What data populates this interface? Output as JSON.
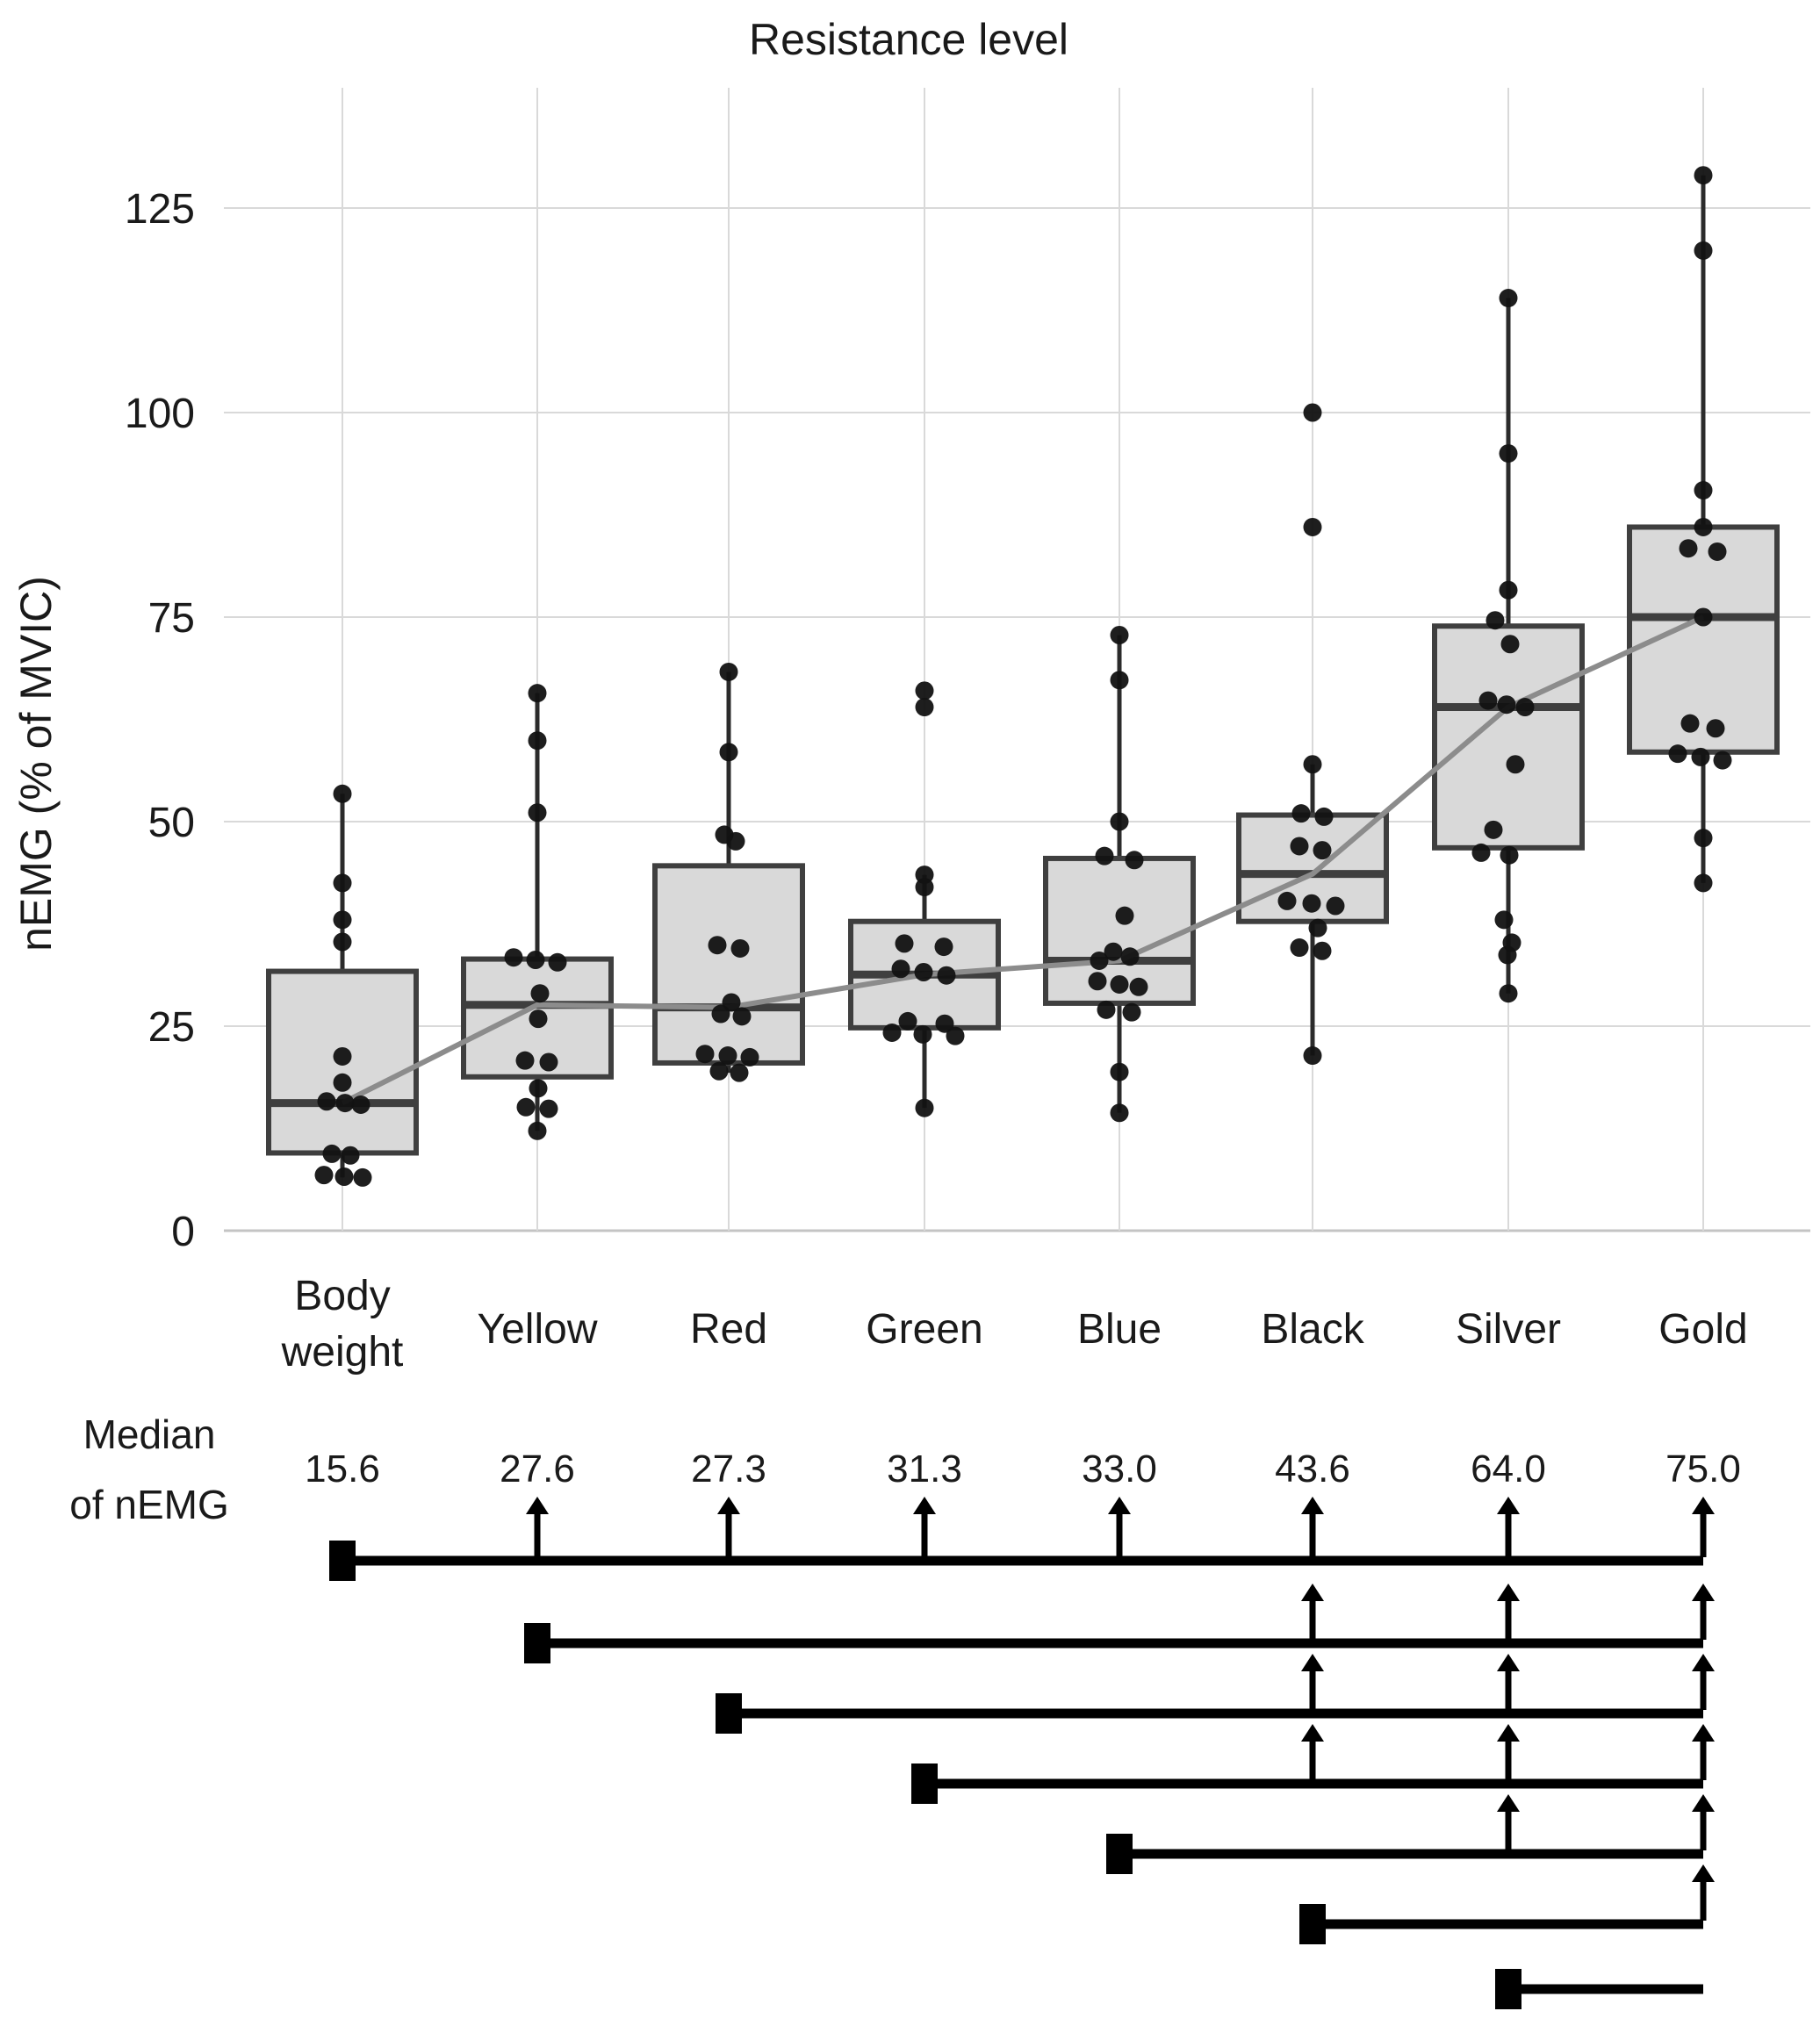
{
  "chart_data": {
    "type": "boxplot",
    "title": "Resistance level",
    "ylabel": "nEMG (% of MVIC)",
    "yticks": [
      0,
      25,
      50,
      75,
      100,
      125
    ],
    "ylim": [
      0,
      137
    ],
    "grid": "on",
    "legend": "none",
    "categories": [
      "Body weight",
      "Yellow",
      "Red",
      "Green",
      "Blue",
      "Black",
      "Silver",
      "Gold"
    ],
    "category_label_lines": [
      [
        "Body",
        "weight"
      ],
      [
        "Yellow"
      ],
      [
        "Red"
      ],
      [
        "Green"
      ],
      [
        "Blue"
      ],
      [
        "Black"
      ],
      [
        "Silver"
      ],
      [
        "Gold"
      ]
    ],
    "medians": [
      15.6,
      27.6,
      27.3,
      31.3,
      33.0,
      43.6,
      64.0,
      75.0
    ],
    "boxes": [
      {
        "category": "Body weight",
        "q1": 9.5,
        "median": 15.6,
        "q3": 31.7,
        "whisker_low": 6.5,
        "whisker_high": 53.4
      },
      {
        "category": "Yellow",
        "q1": 18.8,
        "median": 27.6,
        "q3": 33.2,
        "whisker_low": 12.2,
        "whisker_high": 65.7
      },
      {
        "category": "Red",
        "q1": 20.5,
        "median": 27.3,
        "q3": 44.6,
        "whisker_low": 19.3,
        "whisker_high": 68.3
      },
      {
        "category": "Green",
        "q1": 24.8,
        "median": 31.3,
        "q3": 37.8,
        "whisker_low": 15.0,
        "whisker_high": 43.5
      },
      {
        "category": "Blue",
        "q1": 27.8,
        "median": 33.0,
        "q3": 45.5,
        "whisker_low": 14.4,
        "whisker_high": 72.8
      },
      {
        "category": "Black",
        "q1": 37.8,
        "median": 43.6,
        "q3": 50.8,
        "whisker_low": 21.4,
        "whisker_high": 57.0
      },
      {
        "category": "Silver",
        "q1": 46.8,
        "median": 64.0,
        "q3": 73.9,
        "whisker_low": 29.0,
        "whisker_high": 114.0
      },
      {
        "category": "Gold",
        "q1": 58.5,
        "median": 75.0,
        "q3": 86.0,
        "whisker_low": 42.5,
        "whisker_high": 129.0
      }
    ],
    "points_value_dx": [
      [
        [
          53.4,
          0
        ],
        [
          42.5,
          0
        ],
        [
          38.0,
          0
        ],
        [
          35.3,
          0
        ],
        [
          21.3,
          0
        ],
        [
          18.1,
          0
        ],
        [
          15.8,
          -18
        ],
        [
          15.6,
          3
        ],
        [
          15.4,
          21
        ],
        [
          9.4,
          -12
        ],
        [
          9.2,
          9
        ],
        [
          6.8,
          -21
        ],
        [
          6.6,
          2
        ],
        [
          6.5,
          23
        ]
      ],
      [
        [
          65.7,
          0
        ],
        [
          59.9,
          0
        ],
        [
          51.1,
          0
        ],
        [
          33.4,
          -27
        ],
        [
          33.1,
          -2
        ],
        [
          32.8,
          23
        ],
        [
          29.0,
          3
        ],
        [
          25.9,
          1
        ],
        [
          20.8,
          -14
        ],
        [
          20.6,
          13
        ],
        [
          17.4,
          1
        ],
        [
          15.1,
          -13
        ],
        [
          14.9,
          13
        ],
        [
          12.2,
          0
        ]
      ],
      [
        [
          68.3,
          0
        ],
        [
          58.5,
          0
        ],
        [
          48.4,
          -5
        ],
        [
          47.6,
          8
        ],
        [
          34.9,
          -13
        ],
        [
          34.5,
          13
        ],
        [
          27.9,
          3
        ],
        [
          26.5,
          -9
        ],
        [
          26.2,
          15
        ],
        [
          21.6,
          -27
        ],
        [
          21.4,
          -1
        ],
        [
          21.2,
          24
        ],
        [
          19.5,
          -11
        ],
        [
          19.3,
          12
        ]
      ],
      [
        [
          66.0,
          0
        ],
        [
          64.0,
          0
        ],
        [
          43.5,
          0
        ],
        [
          42.0,
          0
        ],
        [
          35.1,
          -23
        ],
        [
          34.7,
          22
        ],
        [
          32.0,
          -27
        ],
        [
          31.6,
          -1
        ],
        [
          31.2,
          25
        ],
        [
          25.6,
          -19
        ],
        [
          25.3,
          23
        ],
        [
          24.2,
          -37
        ],
        [
          24.0,
          -2
        ],
        [
          23.8,
          35
        ],
        [
          15.0,
          0
        ]
      ],
      [
        [
          72.8,
          0
        ],
        [
          67.3,
          0
        ],
        [
          50.0,
          0
        ],
        [
          45.8,
          -17
        ],
        [
          45.3,
          17
        ],
        [
          38.5,
          6
        ],
        [
          34.1,
          -7
        ],
        [
          33.5,
          12
        ],
        [
          33.0,
          -23
        ],
        [
          30.5,
          -25
        ],
        [
          30.1,
          0
        ],
        [
          29.8,
          22
        ],
        [
          27.0,
          -15
        ],
        [
          26.7,
          14
        ],
        [
          19.4,
          0
        ],
        [
          14.4,
          0
        ]
      ],
      [
        [
          100.0,
          0
        ],
        [
          86.0,
          0
        ],
        [
          57.0,
          0
        ],
        [
          51.0,
          -13
        ],
        [
          50.6,
          13
        ],
        [
          47.0,
          -15
        ],
        [
          46.5,
          11
        ],
        [
          40.3,
          -29
        ],
        [
          40.0,
          -1
        ],
        [
          39.7,
          26
        ],
        [
          37.0,
          6
        ],
        [
          34.6,
          -15
        ],
        [
          34.2,
          11
        ],
        [
          21.4,
          0
        ]
      ],
      [
        [
          114.0,
          0
        ],
        [
          95.0,
          0
        ],
        [
          78.3,
          0
        ],
        [
          74.6,
          -15
        ],
        [
          71.7,
          2
        ],
        [
          64.8,
          -23
        ],
        [
          64.3,
          -2
        ],
        [
          64.0,
          19
        ],
        [
          57.0,
          8
        ],
        [
          49.0,
          -17
        ],
        [
          46.2,
          -31
        ],
        [
          45.9,
          1
        ],
        [
          38.0,
          -5
        ],
        [
          35.2,
          4
        ],
        [
          33.7,
          -1
        ],
        [
          29.0,
          0
        ]
      ],
      [
        [
          129.0,
          0
        ],
        [
          119.8,
          0
        ],
        [
          90.5,
          0
        ],
        [
          86.0,
          0
        ],
        [
          83.4,
          -17
        ],
        [
          83.0,
          16
        ],
        [
          75.0,
          0
        ],
        [
          62.0,
          -15
        ],
        [
          61.4,
          14
        ],
        [
          58.3,
          -29
        ],
        [
          57.9,
          -3
        ],
        [
          57.5,
          22
        ],
        [
          48.0,
          0
        ],
        [
          42.5,
          0
        ]
      ]
    ],
    "median_row": {
      "label_lines": [
        "Median",
        "of nEMG"
      ],
      "values": [
        "15.6",
        "27.6",
        "27.3",
        "31.3",
        "33.0",
        "43.6",
        "64.0",
        "75.0"
      ]
    },
    "significance_rows": [
      {
        "from": "Body weight",
        "to": "Gold",
        "arrows": [
          "Yellow",
          "Red",
          "Green",
          "Blue",
          "Black",
          "Silver",
          "Gold"
        ]
      },
      {
        "from": "Yellow",
        "to": "Gold",
        "arrows": [
          "Black",
          "Silver",
          "Gold"
        ]
      },
      {
        "from": "Red",
        "to": "Gold",
        "arrows": [
          "Black",
          "Silver",
          "Gold"
        ]
      },
      {
        "from": "Green",
        "to": "Gold",
        "arrows": [
          "Black",
          "Silver",
          "Gold"
        ]
      },
      {
        "from": "Blue",
        "to": "Gold",
        "arrows": [
          "Silver",
          "Gold"
        ]
      },
      {
        "from": "Black",
        "to": "Gold",
        "arrows": [
          "Gold"
        ]
      },
      {
        "from": "Silver",
        "to": "Gold",
        "arrows": []
      }
    ],
    "colors": {
      "background": "#ffffff",
      "box_fill": "#d9d9d9",
      "box_stroke": "#3f3f3f",
      "whisker": "#2b2b2b",
      "point": "#121212",
      "trend_line": "#8c8c8c",
      "grid": "#d9d9d9",
      "axis_line": "#c4c4c4",
      "significance": "#000000",
      "text": "#1a1a1a"
    }
  }
}
